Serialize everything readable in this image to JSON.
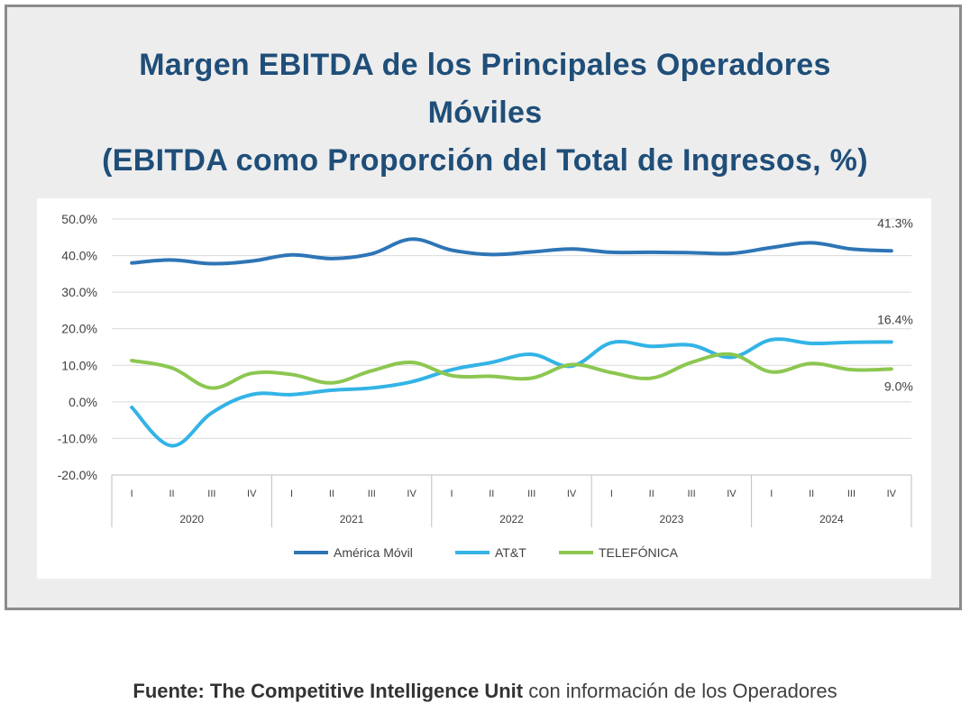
{
  "title": {
    "line1": "Margen EBITDA de los Principales Operadores",
    "line2": "Móviles",
    "line3": "(EBITDA como Proporción del Total de Ingresos, %)"
  },
  "source": {
    "prefix": "Fuente: The Competitive Intelligence Unit",
    "suffix": " con información de los Operadores"
  },
  "chart_data": {
    "type": "line",
    "title": "Margen EBITDA de los Principales Operadores Móviles (EBITDA como Proporción del Total de Ingresos, %)",
    "ylim": [
      -20,
      50
    ],
    "yticks": [
      50,
      40,
      30,
      20,
      10,
      0,
      -10,
      -20
    ],
    "ytick_labels": [
      "50.0%",
      "40.0%",
      "30.0%",
      "20.0%",
      "10.0%",
      "0.0%",
      "-10.0%",
      "-20.0%"
    ],
    "quarters": [
      "I",
      "II",
      "III",
      "IV",
      "I",
      "II",
      "III",
      "IV",
      "I",
      "II",
      "III",
      "IV",
      "I",
      "II",
      "III",
      "IV",
      "I",
      "II",
      "III",
      "IV"
    ],
    "years": [
      "2020",
      "2021",
      "2022",
      "2023",
      "2024"
    ],
    "grid": true,
    "legend_position": "bottom",
    "series": [
      {
        "name": "América Móvil",
        "color": "#2e75b6",
        "values": [
          38.0,
          38.8,
          37.8,
          38.5,
          40.2,
          39.2,
          40.5,
          44.5,
          41.5,
          40.3,
          41.0,
          41.8,
          40.9,
          40.9,
          40.8,
          40.6,
          42.2,
          43.5,
          41.8,
          41.3
        ],
        "end_label": "41.3%"
      },
      {
        "name": "AT&T",
        "color": "#33b3e6",
        "values": [
          -1.5,
          -12.0,
          -3.0,
          2.0,
          2.0,
          3.2,
          3.8,
          5.5,
          8.8,
          10.8,
          13.0,
          9.8,
          16.2,
          15.2,
          15.5,
          12.2,
          17.0,
          16.0,
          16.3,
          16.4
        ],
        "end_label": "16.4%"
      },
      {
        "name": "TELEFÓNICA",
        "color": "#8cc751",
        "values": [
          11.3,
          9.3,
          3.8,
          7.8,
          7.5,
          5.2,
          8.5,
          10.8,
          7.2,
          7.0,
          6.5,
          10.2,
          8.0,
          6.5,
          10.8,
          13.0,
          8.2,
          10.5,
          8.8,
          9.0
        ],
        "end_label": "9.0%"
      }
    ]
  }
}
